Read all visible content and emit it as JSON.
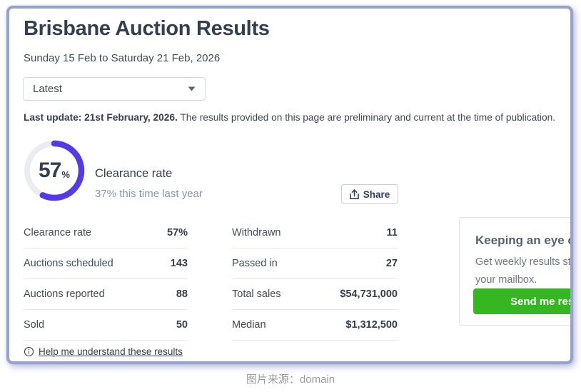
{
  "header": {
    "title": "Brisbane Auction Results",
    "date_range": "Sunday 15 Feb to Saturday 21 Feb, 2026"
  },
  "filter_dropdown": {
    "selected_option": "Latest"
  },
  "last_update": {
    "bold": "Last update: 21st February, 2026.",
    "text": " The results provided on this page are preliminary and current at the time of publication."
  },
  "clearance_summary": {
    "value": 57,
    "display": "57",
    "unit": "%",
    "label": "Clearance rate",
    "last_year": "37% this time last year",
    "ring_color": "#553AE8",
    "track_color": "#EBECF1"
  },
  "share_button": {
    "label": "Share"
  },
  "stats": {
    "left": [
      {
        "label": "Clearance rate",
        "value": "57%"
      },
      {
        "label": "Auctions scheduled",
        "value": "143"
      },
      {
        "label": "Auctions reported",
        "value": "88"
      },
      {
        "label": "Sold",
        "value": "50"
      }
    ],
    "right": [
      {
        "label": "Withdrawn",
        "value": "11"
      },
      {
        "label": "Passed in",
        "value": "27"
      },
      {
        "label": "Total sales",
        "value": "$54,731,000"
      },
      {
        "label": "Median",
        "value": "$1,312,500"
      }
    ]
  },
  "help_link": {
    "label": "Help me understand these results"
  },
  "subscribe_card": {
    "heading": "Keeping an eye on",
    "body_line1": "Get weekly results strai",
    "body_line2": "your mailbox.",
    "button_label": "Send me result",
    "button_color": "#35B722"
  },
  "caption": "图片来源：domain"
}
